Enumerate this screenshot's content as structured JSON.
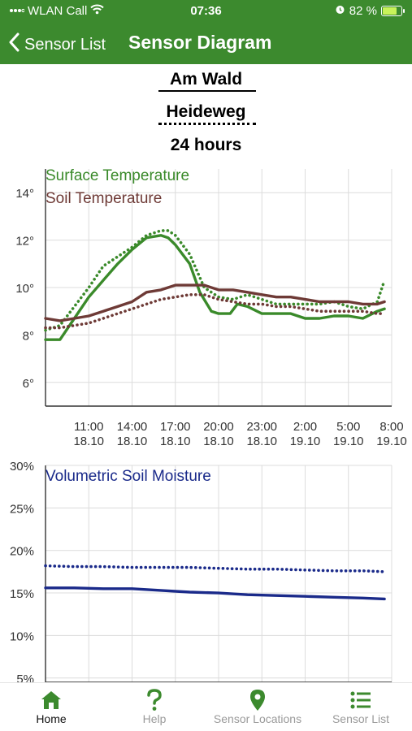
{
  "status_bar": {
    "carrier": "WLAN Call",
    "time": "07:36",
    "battery": "82 %",
    "battery_level": 0.82
  },
  "nav": {
    "back_label": "Sensor List",
    "title": "Sensor Diagram"
  },
  "header": {
    "location1": "Am Wald",
    "location2": "Heideweg",
    "period": "24 hours"
  },
  "colors": {
    "brand_green": "#3c8a2e",
    "surface_temp": "#3a8a2a",
    "soil_temp": "#6e3a36",
    "moisture": "#1a2a8a"
  },
  "chart_data": [
    {
      "type": "line",
      "title": "",
      "legend": [
        "Surface Temperature",
        "Soil Temperature"
      ],
      "legend_position": "top-left",
      "xlabel": "",
      "ylabel": "",
      "ylim": [
        5,
        15
      ],
      "yticks": [
        "6°",
        "8°",
        "10°",
        "12°",
        "14°"
      ],
      "ytick_values": [
        6,
        8,
        10,
        12,
        14
      ],
      "xtick_labels": [
        [
          "11:00",
          "18.10"
        ],
        [
          "14:00",
          "18.10"
        ],
        [
          "17:00",
          "18.10"
        ],
        [
          "20:00",
          "18.10"
        ],
        [
          "23:00",
          "18.10"
        ],
        [
          "2:00",
          "19.10"
        ],
        [
          "5:00",
          "19.10"
        ],
        [
          "8:00",
          "19.10"
        ]
      ],
      "xlim_hours": [
        8,
        32
      ],
      "grid": true,
      "series": [
        {
          "name": "Surface Temperature",
          "style": "solid",
          "hours": [
            8,
            9,
            10,
            11,
            12,
            13,
            14,
            15,
            16,
            16.5,
            17,
            18,
            18.7,
            19.5,
            20,
            20.8,
            21.3,
            22,
            23,
            24,
            25,
            26,
            27,
            28,
            29,
            30,
            31,
            31.5
          ],
          "values": [
            7.8,
            7.8,
            8.7,
            9.6,
            10.3,
            11.0,
            11.6,
            12.1,
            12.2,
            12.1,
            11.8,
            11.0,
            9.8,
            9.0,
            8.9,
            8.9,
            9.3,
            9.2,
            8.9,
            8.9,
            8.9,
            8.7,
            8.7,
            8.8,
            8.8,
            8.7,
            9.0,
            9.1
          ]
        },
        {
          "name": "Surface Temperature (dotted)",
          "style": "dotted",
          "hours": [
            8,
            9,
            10,
            11,
            12,
            13,
            14,
            15,
            16,
            16.5,
            17,
            18,
            19,
            20,
            21,
            22,
            23,
            24,
            25,
            26,
            27,
            28,
            29,
            30,
            31,
            31.5
          ],
          "values": [
            8.2,
            8.4,
            9.2,
            10.0,
            10.9,
            11.3,
            11.7,
            12.2,
            12.4,
            12.4,
            12.2,
            11.4,
            10.0,
            9.6,
            9.5,
            9.7,
            9.5,
            9.3,
            9.3,
            9.3,
            9.3,
            9.4,
            9.2,
            9.1,
            9.4,
            10.3
          ]
        },
        {
          "name": "Soil Temperature",
          "style": "solid",
          "hours": [
            8,
            9,
            10,
            11,
            12,
            13,
            14,
            15,
            16,
            17,
            18,
            19,
            20,
            21,
            22,
            23,
            24,
            25,
            26,
            27,
            28,
            29,
            30,
            31,
            31.5
          ],
          "values": [
            8.7,
            8.6,
            8.7,
            8.8,
            9.0,
            9.2,
            9.4,
            9.8,
            9.9,
            10.1,
            10.1,
            10.1,
            9.9,
            9.9,
            9.8,
            9.7,
            9.6,
            9.6,
            9.5,
            9.4,
            9.4,
            9.4,
            9.3,
            9.3,
            9.4
          ]
        },
        {
          "name": "Soil Temperature (dotted)",
          "style": "dotted",
          "hours": [
            8,
            9,
            10,
            11,
            12,
            13,
            14,
            15,
            16,
            17,
            18,
            19,
            20,
            21,
            22,
            23,
            24,
            25,
            26,
            27,
            28,
            29,
            30,
            31,
            31.5
          ],
          "values": [
            8.3,
            8.3,
            8.4,
            8.5,
            8.7,
            8.9,
            9.1,
            9.3,
            9.5,
            9.6,
            9.7,
            9.7,
            9.5,
            9.4,
            9.3,
            9.3,
            9.2,
            9.2,
            9.1,
            9.0,
            9.0,
            9.0,
            9.0,
            8.9,
            8.9
          ]
        }
      ]
    },
    {
      "type": "line",
      "title": "",
      "legend": [
        "Volumetric Soil Moisture"
      ],
      "legend_position": "top-left",
      "xlabel": "",
      "ylabel": "",
      "ylim": [
        4.5,
        30
      ],
      "yticks": [
        "30%",
        "25%",
        "20%",
        "15%",
        "10%",
        "5%"
      ],
      "ytick_values": [
        30,
        25,
        20,
        15,
        10,
        5
      ],
      "xlim_hours": [
        8,
        32
      ],
      "grid": true,
      "series": [
        {
          "name": "Volumetric Soil Moisture",
          "style": "solid",
          "hours": [
            8,
            10,
            12,
            14,
            16,
            18,
            20,
            22,
            24,
            26,
            28,
            30,
            31.5
          ],
          "values": [
            15.6,
            15.6,
            15.5,
            15.5,
            15.3,
            15.1,
            15.0,
            14.8,
            14.7,
            14.6,
            14.5,
            14.4,
            14.3
          ]
        },
        {
          "name": "Volumetric Soil Moisture (dotted)",
          "style": "dotted",
          "hours": [
            8,
            10,
            12,
            14,
            16,
            18,
            20,
            22,
            24,
            26,
            28,
            30,
            31.5
          ],
          "values": [
            18.2,
            18.1,
            18.1,
            18.0,
            18.0,
            18.0,
            17.9,
            17.8,
            17.8,
            17.7,
            17.6,
            17.6,
            17.5
          ]
        }
      ]
    }
  ],
  "tabs": [
    {
      "label": "Home",
      "icon": "home-icon",
      "active": true
    },
    {
      "label": "Help",
      "icon": "question-icon",
      "active": false
    },
    {
      "label": "Sensor Locations",
      "icon": "map-pin-icon",
      "active": false
    },
    {
      "label": "Sensor List",
      "icon": "list-icon",
      "active": false
    }
  ]
}
